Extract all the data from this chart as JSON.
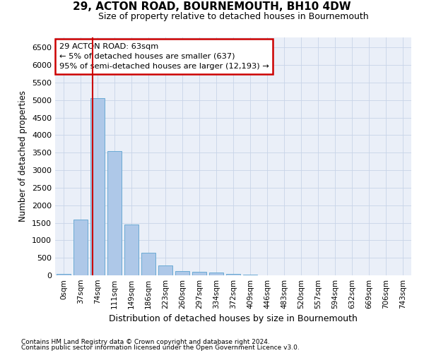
{
  "title": "29, ACTON ROAD, BOURNEMOUTH, BH10 4DW",
  "subtitle": "Size of property relative to detached houses in Bournemouth",
  "xlabel": "Distribution of detached houses by size in Bournemouth",
  "ylabel": "Number of detached properties",
  "footnote1": "Contains HM Land Registry data © Crown copyright and database right 2024.",
  "footnote2": "Contains public sector information licensed under the Open Government Licence v3.0.",
  "bin_labels": [
    "0sqm",
    "37sqm",
    "74sqm",
    "111sqm",
    "149sqm",
    "186sqm",
    "223sqm",
    "260sqm",
    "297sqm",
    "334sqm",
    "372sqm",
    "409sqm",
    "446sqm",
    "483sqm",
    "520sqm",
    "557sqm",
    "594sqm",
    "632sqm",
    "669sqm",
    "706sqm",
    "743sqm"
  ],
  "bar_values": [
    50,
    1600,
    5050,
    3550,
    1450,
    650,
    280,
    130,
    100,
    75,
    50,
    30,
    10,
    5,
    3,
    2,
    1,
    1,
    0,
    0,
    0
  ],
  "bar_color": "#aec8e8",
  "bar_edge_color": "#6aaad4",
  "bar_edge_width": 0.7,
  "grid_color": "#c8d4e8",
  "bg_color": "#eaeff8",
  "red_line_x": 63,
  "bin_width": 37,
  "annotation_text": "29 ACTON ROAD: 63sqm\n← 5% of detached houses are smaller (637)\n95% of semi-detached houses are larger (12,193) →",
  "annotation_box_color": "#ffffff",
  "annotation_box_edge": "#cc0000",
  "ylim": [
    0,
    6800
  ],
  "yticks": [
    0,
    500,
    1000,
    1500,
    2000,
    2500,
    3000,
    3500,
    4000,
    4500,
    5000,
    5500,
    6000,
    6500
  ]
}
